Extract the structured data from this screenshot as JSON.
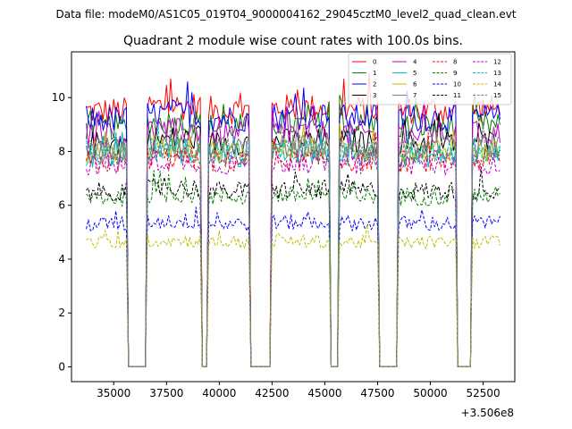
{
  "header": {
    "data_file": "Data file: modeM0/AS1C05_019T04_9000004162_29045cztM0_level2_quad_clean.evt"
  },
  "chart_data": {
    "type": "line",
    "title": "Quadrant 2 module wise count rates with 100.0s bins.",
    "xlabel": "",
    "ylabel": "",
    "x_offset_label": "+3.506e8",
    "x_offset": 350600000,
    "xlim": [
      33000,
      54000
    ],
    "ylim": [
      -0.55,
      11.7
    ],
    "x_ticks": [
      35000,
      37500,
      40000,
      42500,
      45000,
      47500,
      50000,
      52500
    ],
    "x_tick_labels": [
      "35000",
      "37500",
      "40000",
      "42500",
      "45000",
      "47500",
      "50000",
      "52500"
    ],
    "y_ticks": [
      0,
      2,
      4,
      6,
      8,
      10
    ],
    "y_tick_labels": [
      "0",
      "2",
      "4",
      "6",
      "8",
      "10"
    ],
    "bin_seconds": 100.0,
    "x_start": 33700,
    "x_end": 53300,
    "gaps": [
      [
        35650,
        36500
      ],
      [
        39150,
        39400
      ],
      [
        41500,
        42450
      ],
      [
        45300,
        45600
      ],
      [
        47600,
        48400
      ],
      [
        51300,
        51950
      ]
    ],
    "legend": {
      "placement": "top-right",
      "columns": 4
    },
    "series": [
      {
        "name": "0",
        "color": "#ff0000",
        "dash": "solid",
        "mean": 9.5
      },
      {
        "name": "1",
        "color": "#008000",
        "dash": "solid",
        "mean": 8.9
      },
      {
        "name": "2",
        "color": "#0000ff",
        "dash": "solid",
        "mean": 9.2
      },
      {
        "name": "3",
        "color": "#000000",
        "dash": "solid",
        "mean": 8.3
      },
      {
        "name": "4",
        "color": "#bf00bf",
        "dash": "solid",
        "mean": 8.6
      },
      {
        "name": "5",
        "color": "#00bfbf",
        "dash": "solid",
        "mean": 7.8
      },
      {
        "name": "6",
        "color": "#bfbf00",
        "dash": "solid",
        "mean": 8.0
      },
      {
        "name": "7",
        "color": "#808080",
        "dash": "solid",
        "mean": 8.1
      },
      {
        "name": "8",
        "color": "#ff0000",
        "dash": "dashed",
        "mean": 7.6
      },
      {
        "name": "9",
        "color": "#008000",
        "dash": "dashed",
        "mean": 6.3
      },
      {
        "name": "10",
        "color": "#0000ff",
        "dash": "dashed",
        "mean": 5.3
      },
      {
        "name": "11",
        "color": "#000000",
        "dash": "dashed",
        "mean": 6.5
      },
      {
        "name": "12",
        "color": "#bf00bf",
        "dash": "dashed",
        "mean": 7.5
      },
      {
        "name": "13",
        "color": "#00bfbf",
        "dash": "dashed",
        "mean": 7.9
      },
      {
        "name": "14",
        "color": "#bfbf00",
        "dash": "dashed",
        "mean": 4.6
      },
      {
        "name": "15",
        "color": "#808080",
        "dash": "dashed",
        "mean": 8.0
      }
    ]
  }
}
